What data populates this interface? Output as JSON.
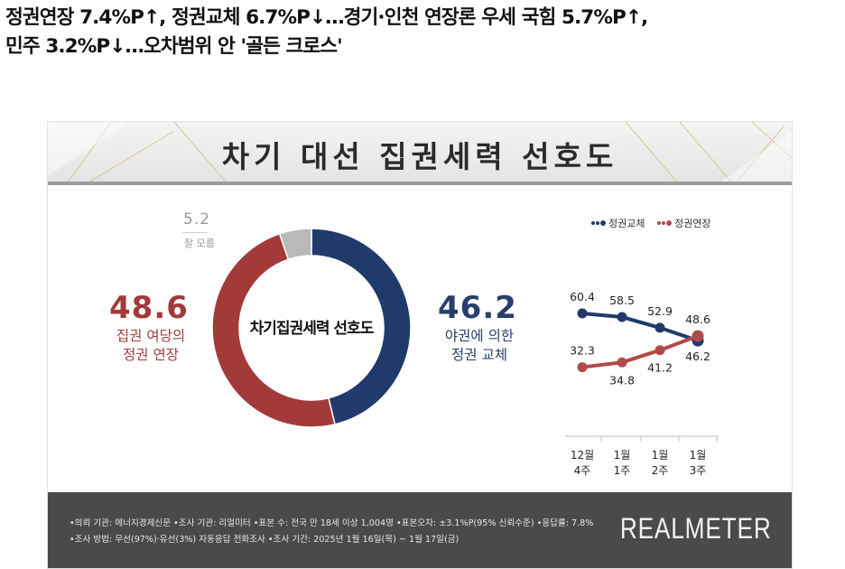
{
  "headline": {
    "line1": "정권연장 7.4%P↑, 정권교체 6.7%P↓…경기·인천 연장론 우세 국힘 5.7%P↑,",
    "line2": "민주 3.2%P↓…오차범위 안 '골든 크로스'"
  },
  "banner_title": "차기 대선 집권세력 선호도",
  "colors": {
    "red": "#a23a3a",
    "navy": "#1f3a6b",
    "gray": "#b9b9b9",
    "footer": "#4a4a4a"
  },
  "chart_data": [
    {
      "type": "pie",
      "title": "차기집권세력 선호도",
      "categories": [
        "집권 여당의 정권 연장",
        "야권에 의한 정권 교체",
        "잘 모름"
      ],
      "values": [
        48.6,
        46.2,
        5.2
      ],
      "labels": {
        "extend_value": "48.6",
        "extend_label_1": "집권 여당의",
        "extend_label_2": "정권 연장",
        "change_value": "46.2",
        "change_label_1": "야권에 의한",
        "change_label_2": "정권 교체",
        "unknown_value": "5.2",
        "unknown_label": "잘 모름"
      }
    },
    {
      "type": "line",
      "categories": [
        "12월 4주",
        "1월 1주",
        "1월 2주",
        "1월 3주"
      ],
      "x_labels": [
        {
          "month": "12월",
          "week": "4주"
        },
        {
          "month": "1월",
          "week": "1주"
        },
        {
          "month": "1월",
          "week": "2주"
        },
        {
          "month": "1월",
          "week": "3주"
        }
      ],
      "series": [
        {
          "name": "정권교체",
          "color": "#1f3a6b",
          "values": [
            60.4,
            58.5,
            52.9,
            46.2
          ],
          "value_labels": [
            "60.4",
            "58.5",
            "52.9",
            "46.2"
          ]
        },
        {
          "name": "정권연장",
          "color": "#b04a4a",
          "values": [
            32.3,
            34.8,
            41.2,
            48.6
          ],
          "value_labels": [
            "32.3",
            "34.8",
            "41.2",
            "48.6"
          ]
        }
      ]
    }
  ],
  "footer": {
    "note_line1": "•의뢰 기관: 에너지경제신문 •조사 기관: 리얼미터 •표본 수: 전국 만 18세 이상 1,004명 •표본오차: ±3.1%P(95% 신뢰수준) •응답률: 7.8%",
    "note_line2": "•조사 방법: 무선(97%)·유선(3%) 자동응답 전화조사 •조사 기간: 2025년 1월 16일(목) ~ 1월 17일(금)",
    "brand": "REALMETER"
  }
}
